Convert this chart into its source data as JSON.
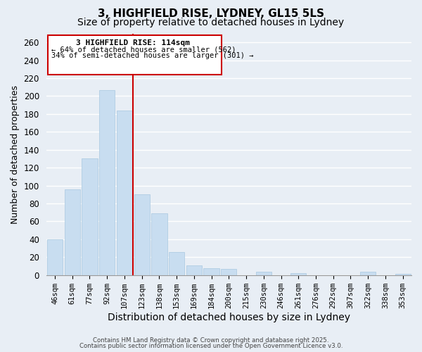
{
  "title": "3, HIGHFIELD RISE, LYDNEY, GL15 5LS",
  "subtitle": "Size of property relative to detached houses in Lydney",
  "xlabel": "Distribution of detached houses by size in Lydney",
  "ylabel": "Number of detached properties",
  "categories": [
    "46sqm",
    "61sqm",
    "77sqm",
    "92sqm",
    "107sqm",
    "123sqm",
    "138sqm",
    "153sqm",
    "169sqm",
    "184sqm",
    "200sqm",
    "215sqm",
    "230sqm",
    "246sqm",
    "261sqm",
    "276sqm",
    "292sqm",
    "307sqm",
    "322sqm",
    "338sqm",
    "353sqm"
  ],
  "values": [
    40,
    96,
    130,
    207,
    184,
    90,
    69,
    26,
    11,
    8,
    7,
    0,
    4,
    0,
    2,
    0,
    0,
    0,
    4,
    0,
    1
  ],
  "bar_color": "#c8ddf0",
  "bar_edge_color": "#a8c8e0",
  "vline_x_index": 4,
  "vline_color": "#cc0000",
  "ylim": [
    0,
    270
  ],
  "yticks": [
    0,
    20,
    40,
    60,
    80,
    100,
    120,
    140,
    160,
    180,
    200,
    220,
    240,
    260
  ],
  "annotation_title": "3 HIGHFIELD RISE: 114sqm",
  "annotation_line1": "← 64% of detached houses are smaller (562)",
  "annotation_line2": "34% of semi-detached houses are larger (301) →",
  "annotation_box_color": "#ffffff",
  "annotation_box_edge": "#cc0000",
  "footer_line1": "Contains HM Land Registry data © Crown copyright and database right 2025.",
  "footer_line2": "Contains public sector information licensed under the Open Government Licence v3.0.",
  "background_color": "#e8eef5",
  "plot_background": "#e8eef5",
  "grid_color": "#ffffff",
  "title_fontsize": 11,
  "subtitle_fontsize": 10,
  "figsize": [
    6.0,
    5.0
  ],
  "dpi": 100
}
